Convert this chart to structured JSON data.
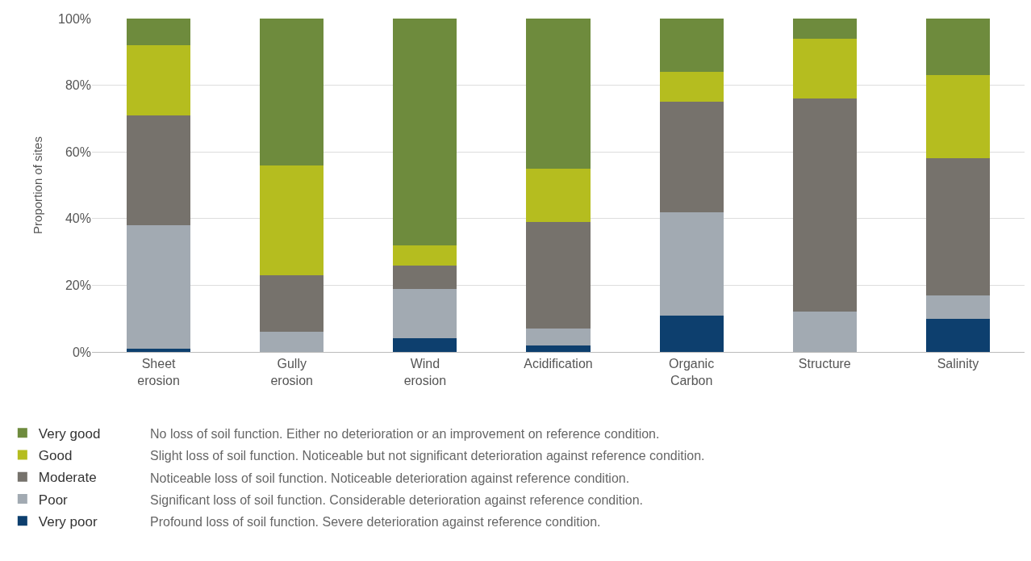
{
  "chart_data": {
    "type": "bar",
    "stacked": true,
    "ylabel": "Proportion of sites",
    "categories": [
      "Sheet erosion",
      "Gully erosion",
      "Wind erosion",
      "Acidification",
      "Organic Carbon",
      "Structure",
      "Salinity"
    ],
    "series": [
      {
        "name": "Very poor",
        "color": "#0d3f6e",
        "values": [
          1,
          0,
          4,
          2,
          11,
          0,
          10
        ]
      },
      {
        "name": "Poor",
        "color": "#a2aab2",
        "values": [
          37,
          6,
          15,
          5,
          31,
          12,
          7
        ]
      },
      {
        "name": "Moderate",
        "color": "#76726c",
        "values": [
          33,
          17,
          7,
          32,
          33,
          64,
          41
        ]
      },
      {
        "name": "Good",
        "color": "#b5bd1f",
        "values": [
          21,
          33,
          6,
          16,
          9,
          18,
          25
        ]
      },
      {
        "name": "Very good",
        "color": "#6e8b3d",
        "values": [
          8,
          44,
          68,
          45,
          16,
          6,
          17
        ]
      }
    ],
    "ylim": [
      0,
      100
    ],
    "yticks": [
      {
        "value": 0,
        "label": "0%"
      },
      {
        "value": 20,
        "label": "20%"
      },
      {
        "value": 40,
        "label": "40%"
      },
      {
        "value": 60,
        "label": "60%"
      },
      {
        "value": 80,
        "label": "80%"
      },
      {
        "value": 100,
        "label": "100%"
      }
    ],
    "grid": "y",
    "legend": "bottom left",
    "annotations": [
      "No loss of soil function. Either no deterioration or an improvement on reference condition.",
      "Slight loss of soil function. Noticeable but not significant deterioration against reference condition.",
      "Noticeable loss of soil function. Noticeable deterioration against reference condition.",
      "Significant loss of soil function. Considerable deterioration against reference condition.",
      "Profound loss of soil function. Severe deterioration against reference condition."
    ]
  }
}
